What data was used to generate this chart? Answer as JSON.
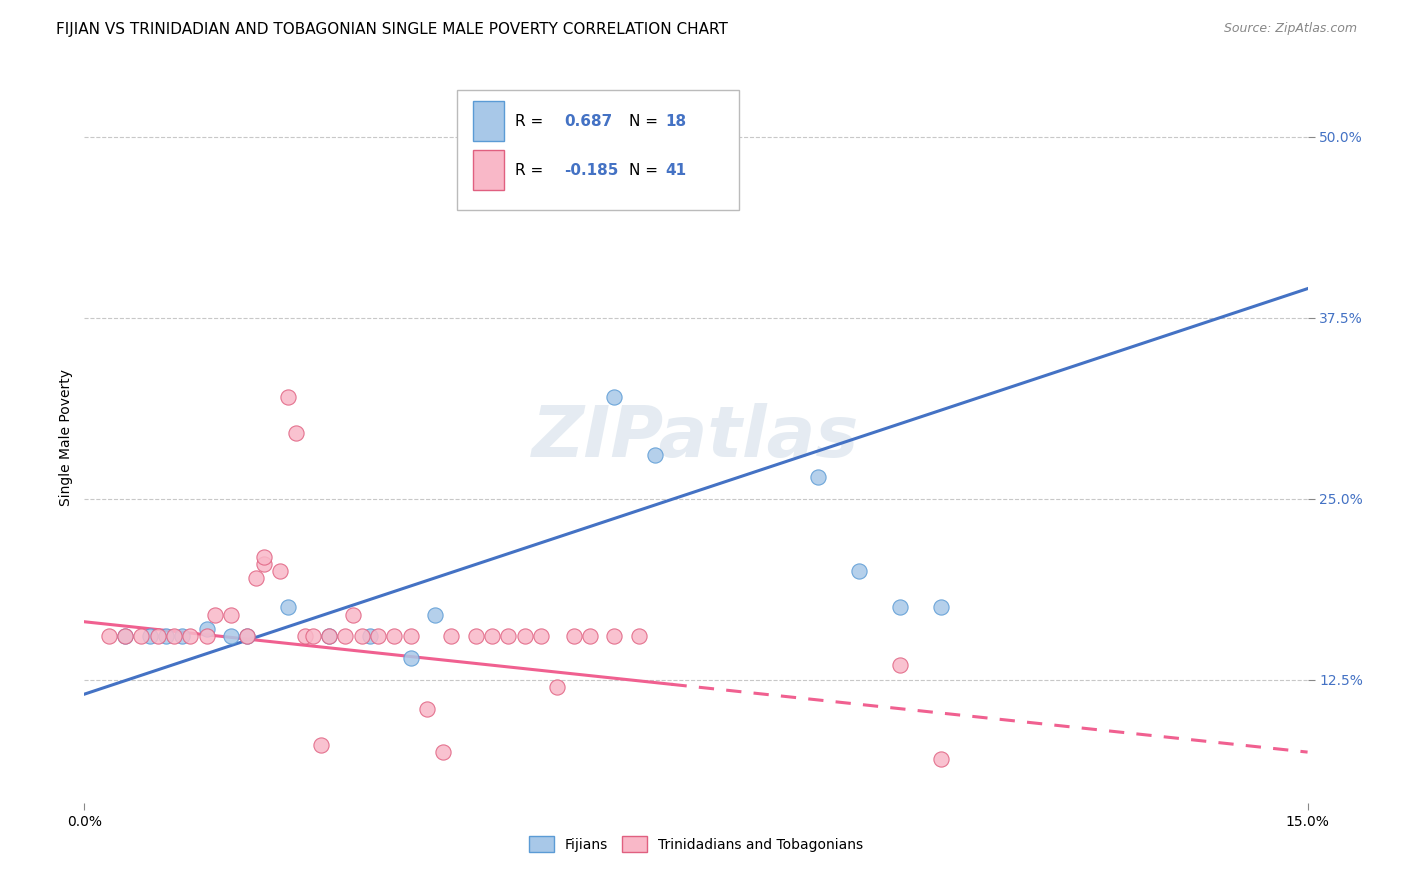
{
  "title": "FIJIAN VS TRINIDADIAN AND TOBAGONIAN SINGLE MALE POVERTY CORRELATION CHART",
  "source": "Source: ZipAtlas.com",
  "ylabel": "Single Male Poverty",
  "xmin": 0.0,
  "xmax": 0.15,
  "ymin": 0.04,
  "ymax": 0.545,
  "yticks": [
    0.125,
    0.25,
    0.375,
    0.5
  ],
  "ytick_labels": [
    "12.5%",
    "25.0%",
    "37.5%",
    "50.0%"
  ],
  "xticks": [
    0.0,
    0.15
  ],
  "xtick_labels": [
    "0.0%",
    "15.0%"
  ],
  "fijian_color": "#a8c8e8",
  "fijian_edge_color": "#5b9bd5",
  "trinidadian_color": "#f9b8c8",
  "trinidadian_edge_color": "#e06080",
  "fijian_line_color": "#4472c4",
  "trinidadian_line_color": "#f06090",
  "grid_color": "#c8c8c8",
  "background_color": "#ffffff",
  "watermark": "ZIPatlas",
  "legend_r_fijian": "0.687",
  "legend_n_fijian": "18",
  "legend_r_trini": "-0.185",
  "legend_n_trini": "41",
  "fijian_scatter_x": [
    0.005,
    0.008,
    0.01,
    0.012,
    0.015,
    0.018,
    0.02,
    0.025,
    0.03,
    0.035,
    0.04,
    0.043,
    0.065,
    0.07,
    0.09,
    0.095,
    0.1,
    0.105
  ],
  "fijian_scatter_y": [
    0.155,
    0.155,
    0.155,
    0.155,
    0.16,
    0.155,
    0.155,
    0.175,
    0.155,
    0.155,
    0.14,
    0.17,
    0.32,
    0.28,
    0.265,
    0.2,
    0.175,
    0.175
  ],
  "trinidadian_scatter_x": [
    0.003,
    0.005,
    0.007,
    0.009,
    0.011,
    0.013,
    0.015,
    0.016,
    0.018,
    0.02,
    0.021,
    0.022,
    0.022,
    0.024,
    0.025,
    0.026,
    0.027,
    0.028,
    0.029,
    0.03,
    0.032,
    0.033,
    0.034,
    0.036,
    0.038,
    0.04,
    0.042,
    0.044,
    0.045,
    0.048,
    0.05,
    0.052,
    0.054,
    0.056,
    0.058,
    0.06,
    0.062,
    0.065,
    0.068,
    0.1,
    0.105
  ],
  "trinidadian_scatter_y": [
    0.155,
    0.155,
    0.155,
    0.155,
    0.155,
    0.155,
    0.155,
    0.17,
    0.17,
    0.155,
    0.195,
    0.205,
    0.21,
    0.2,
    0.32,
    0.295,
    0.155,
    0.155,
    0.08,
    0.155,
    0.155,
    0.17,
    0.155,
    0.155,
    0.155,
    0.155,
    0.105,
    0.075,
    0.155,
    0.155,
    0.155,
    0.155,
    0.155,
    0.155,
    0.12,
    0.155,
    0.155,
    0.155,
    0.155,
    0.135,
    0.07
  ],
  "title_fontsize": 11,
  "axis_label_fontsize": 10,
  "tick_fontsize": 10,
  "legend_fontsize": 11
}
